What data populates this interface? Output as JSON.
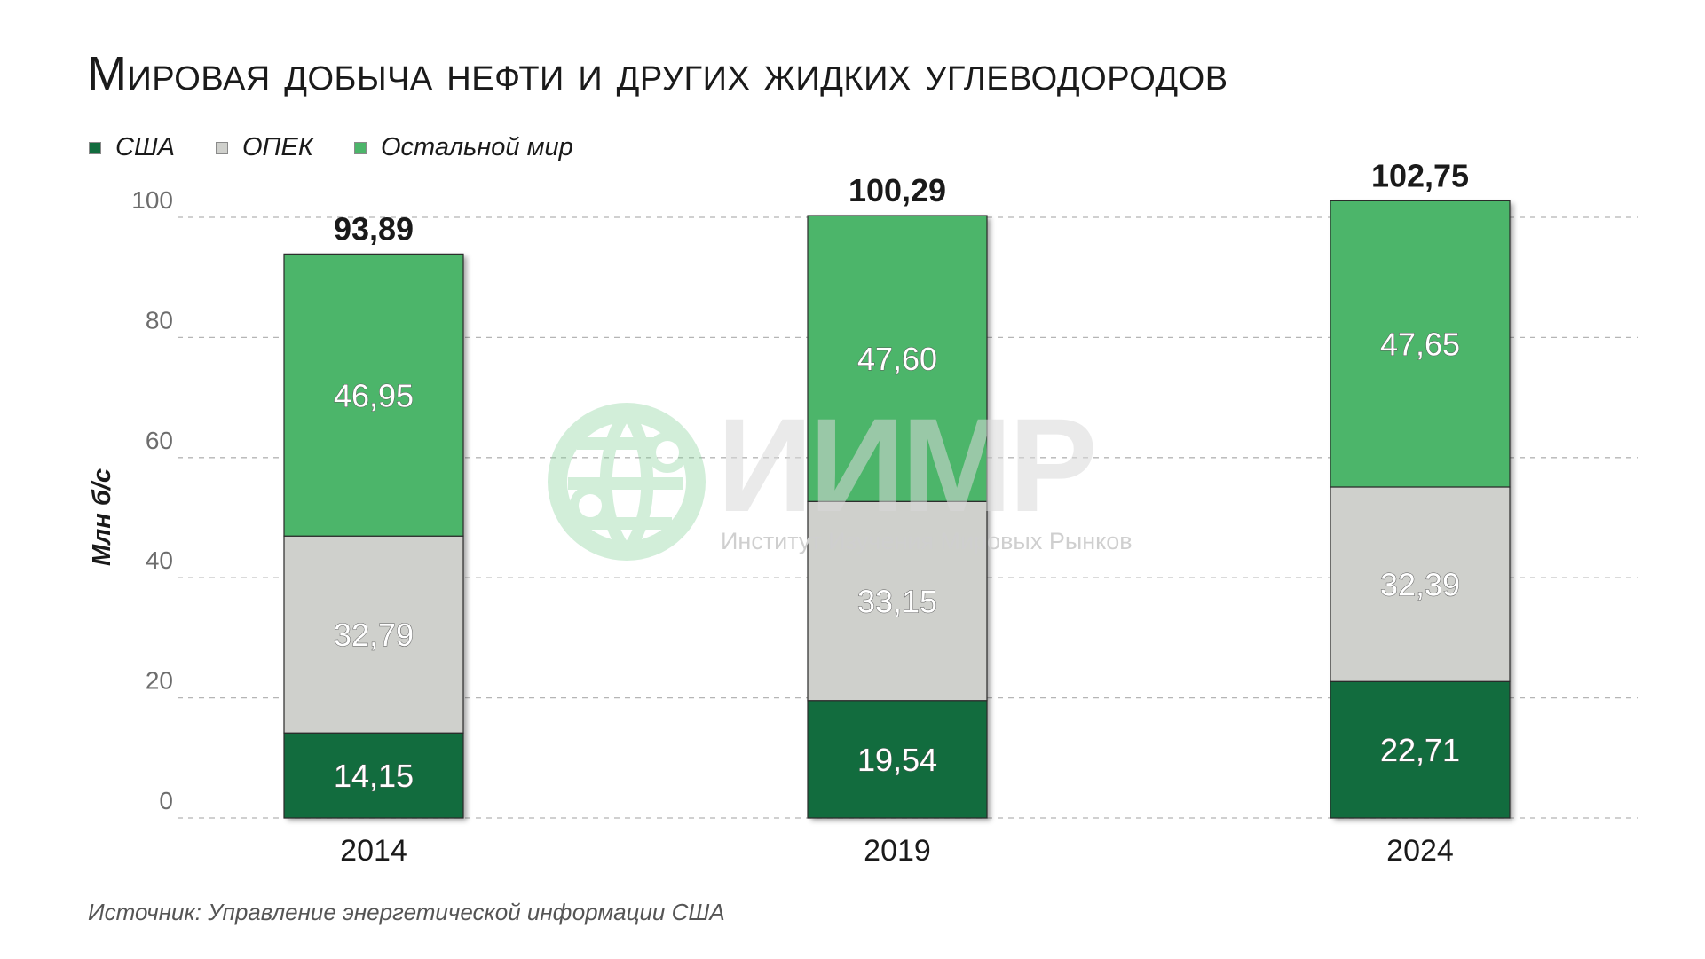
{
  "title": "Мировая добыча нефти и других жидких углеводородов",
  "legend": [
    {
      "label": "США",
      "color": "#126c3e"
    },
    {
      "label": "ОПЕК",
      "color": "#cfd0cc"
    },
    {
      "label": "Остальной мир",
      "color": "#4cb56a"
    }
  ],
  "source": "Источник: Управление энергетической информации США",
  "watermark": {
    "word": "ИИМР",
    "subtitle": "Институт Изучения Мировых Рынков"
  },
  "chart_data": {
    "type": "bar",
    "stacked": true,
    "categories": [
      "2014",
      "2019",
      "2024"
    ],
    "series": [
      {
        "name": "США",
        "values": [
          14.15,
          19.54,
          22.71
        ],
        "labels": [
          "14,15",
          "19,54",
          "22,71"
        ],
        "color": "#126c3e"
      },
      {
        "name": "ОПЕК",
        "values": [
          32.79,
          33.15,
          32.39
        ],
        "labels": [
          "32,79",
          "33,15",
          "32,39"
        ],
        "color": "#cfd0cc"
      },
      {
        "name": "Остальной мир",
        "values": [
          46.95,
          47.6,
          47.65
        ],
        "labels": [
          "46,95",
          "47,60",
          "47,65"
        ],
        "color": "#4cb56a"
      }
    ],
    "totals": [
      93.89,
      100.29,
      102.75
    ],
    "total_labels": [
      "93,89",
      "100,29",
      "102,75"
    ],
    "ylabel": "Млн б/с",
    "ylim": [
      0,
      100
    ],
    "yticks": [
      0,
      20,
      40,
      60,
      80,
      100
    ],
    "grid": true
  }
}
